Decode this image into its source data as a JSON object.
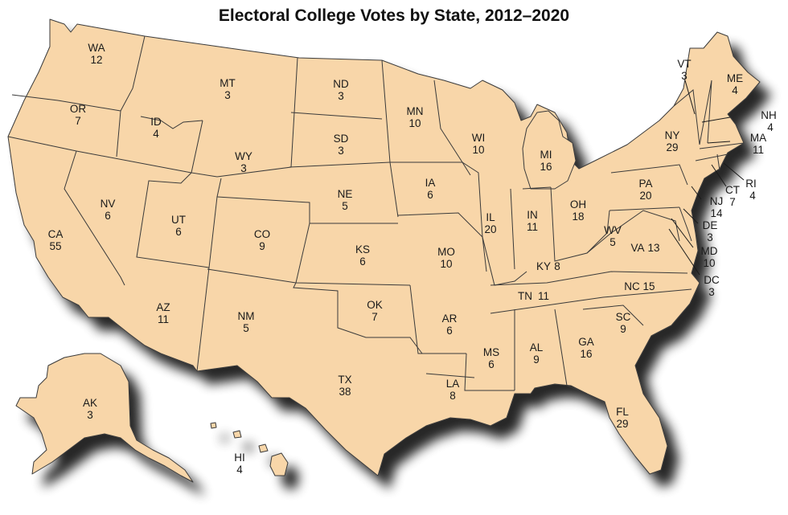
{
  "title": "Electoral College Votes by State, 2012–2020",
  "colors": {
    "land": "#f8d6a9",
    "shadow": "#5a5550",
    "border": "#3a3a3a",
    "text": "#1a1a1a"
  },
  "states": {
    "WA": {
      "abbr": "WA",
      "votes": "12"
    },
    "OR": {
      "abbr": "OR",
      "votes": "7"
    },
    "CA": {
      "abbr": "CA",
      "votes": "55"
    },
    "NV": {
      "abbr": "NV",
      "votes": "6"
    },
    "ID": {
      "abbr": "ID",
      "votes": "4"
    },
    "MT": {
      "abbr": "MT",
      "votes": "3"
    },
    "WY": {
      "abbr": "WY",
      "votes": "3"
    },
    "UT": {
      "abbr": "UT",
      "votes": "6"
    },
    "AZ": {
      "abbr": "AZ",
      "votes": "11"
    },
    "CO": {
      "abbr": "CO",
      "votes": "9"
    },
    "NM": {
      "abbr": "NM",
      "votes": "5"
    },
    "ND": {
      "abbr": "ND",
      "votes": "3"
    },
    "SD": {
      "abbr": "SD",
      "votes": "3"
    },
    "NE": {
      "abbr": "NE",
      "votes": "5"
    },
    "KS": {
      "abbr": "KS",
      "votes": "6"
    },
    "OK": {
      "abbr": "OK",
      "votes": "7"
    },
    "TX": {
      "abbr": "TX",
      "votes": "38"
    },
    "MN": {
      "abbr": "MN",
      "votes": "10"
    },
    "IA": {
      "abbr": "IA",
      "votes": "6"
    },
    "MO": {
      "abbr": "MO",
      "votes": "10"
    },
    "AR": {
      "abbr": "AR",
      "votes": "6"
    },
    "LA": {
      "abbr": "LA",
      "votes": "8"
    },
    "WI": {
      "abbr": "WI",
      "votes": "10"
    },
    "IL": {
      "abbr": "IL",
      "votes": "20"
    },
    "MI": {
      "abbr": "MI",
      "votes": "16"
    },
    "IN": {
      "abbr": "IN",
      "votes": "11"
    },
    "OH": {
      "abbr": "OH",
      "votes": "18"
    },
    "KY": {
      "abbr": "KY",
      "votes": "8"
    },
    "TN": {
      "abbr": "TN",
      "votes": "11"
    },
    "MS": {
      "abbr": "MS",
      "votes": "6"
    },
    "AL": {
      "abbr": "AL",
      "votes": "9"
    },
    "GA": {
      "abbr": "GA",
      "votes": "16"
    },
    "FL": {
      "abbr": "FL",
      "votes": "29"
    },
    "SC": {
      "abbr": "SC",
      "votes": "9"
    },
    "NC": {
      "abbr": "NC",
      "votes": "15"
    },
    "VA": {
      "abbr": "VA",
      "votes": "13"
    },
    "WV": {
      "abbr": "WV",
      "votes": "5"
    },
    "PA": {
      "abbr": "PA",
      "votes": "20"
    },
    "NY": {
      "abbr": "NY",
      "votes": "29"
    },
    "VT": {
      "abbr": "VT",
      "votes": "3"
    },
    "NH": {
      "abbr": "NH",
      "votes": "4"
    },
    "ME": {
      "abbr": "ME",
      "votes": "4"
    },
    "MA": {
      "abbr": "MA",
      "votes": "11"
    },
    "RI": {
      "abbr": "RI",
      "votes": "4"
    },
    "CT": {
      "abbr": "CT",
      "votes": "7"
    },
    "NJ": {
      "abbr": "NJ",
      "votes": "14"
    },
    "DE": {
      "abbr": "DE",
      "votes": "3"
    },
    "MD": {
      "abbr": "MD",
      "votes": "10"
    },
    "DC": {
      "abbr": "DC",
      "votes": "3"
    },
    "AK": {
      "abbr": "AK",
      "votes": "3"
    },
    "HI": {
      "abbr": "HI",
      "votes": "4"
    }
  }
}
